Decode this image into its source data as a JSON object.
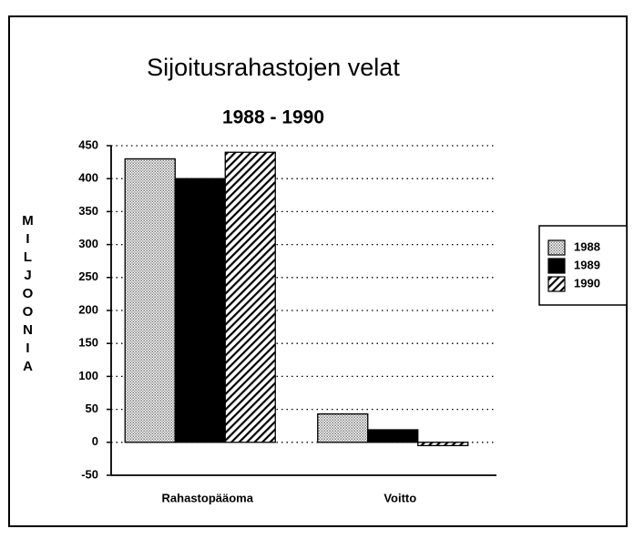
{
  "chart_data": {
    "type": "bar",
    "title": "Sijoitusrahastojen velat",
    "subtitle": "1988 - 1990",
    "y_label": "MILJOONIA",
    "categories": [
      "Rahastopääoma",
      "Voitto"
    ],
    "series": [
      {
        "name": "1988",
        "color": "#9a9a9a",
        "pattern": "dots",
        "values": [
          430,
          43
        ]
      },
      {
        "name": "1989",
        "color": "#000000",
        "pattern": "solid",
        "values": [
          400,
          19
        ]
      },
      {
        "name": "1990",
        "color": "#000000",
        "pattern": "hatch",
        "values": [
          440,
          -5
        ]
      }
    ],
    "ylim": [
      -50,
      450
    ],
    "yticks": [
      -50,
      0,
      50,
      100,
      150,
      200,
      250,
      300,
      350,
      400,
      450
    ],
    "grid": true,
    "legend": "right"
  }
}
